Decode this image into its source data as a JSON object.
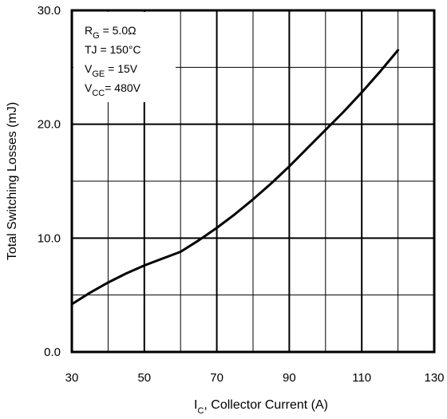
{
  "chart_data": {
    "type": "line",
    "xlabel_main": "I",
    "xlabel_sub": "C",
    "xlabel_rest": ", Collector Current  (A)",
    "ylabel": "Total Switching Losses (mJ)",
    "xlim": [
      30,
      130
    ],
    "ylim": [
      0,
      30
    ],
    "x_ticks": [
      30,
      50,
      70,
      90,
      110,
      130
    ],
    "x_tick_labels": [
      "30",
      "50",
      "70",
      "90",
      "110",
      "130"
    ],
    "y_ticks": [
      0,
      10,
      20,
      30
    ],
    "y_tick_labels": [
      "0.0",
      "10.0",
      "20.0",
      "30.0"
    ],
    "grid": true,
    "legend_position": "top-left",
    "conditions": [
      {
        "main": "R",
        "sub": "G",
        "rest": " = 5.0Ω"
      },
      {
        "main": "TJ = 150°C",
        "sub": "",
        "rest": ""
      },
      {
        "main": "V",
        "sub": "GE",
        "rest": " = 15V"
      },
      {
        "main": "V",
        "sub": "CC",
        "rest": "= 480V"
      }
    ],
    "series": [
      {
        "x": [
          30,
          35,
          40,
          45,
          50,
          55,
          60,
          65,
          70,
          75,
          80,
          85,
          90,
          95,
          100,
          105,
          110,
          115,
          120
        ],
        "y": [
          4.2,
          5.2,
          6.1,
          6.9,
          7.6,
          8.2,
          8.8,
          9.8,
          10.9,
          12.1,
          13.4,
          14.8,
          16.3,
          17.9,
          19.5,
          21.1,
          22.8,
          24.6,
          26.5
        ]
      }
    ]
  }
}
